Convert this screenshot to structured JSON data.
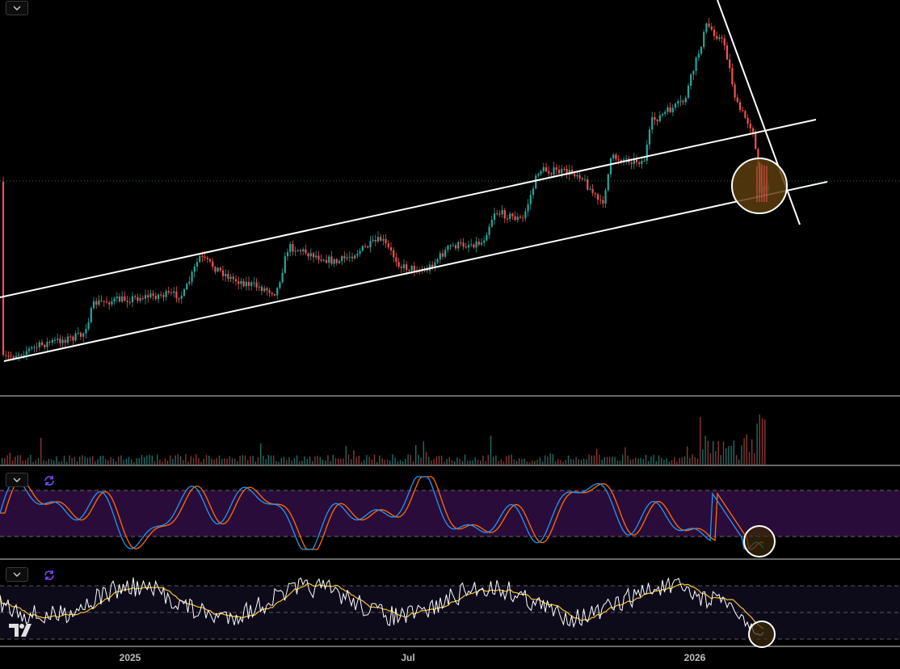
{
  "app": {
    "logo_name": "tradingview-logo-icon"
  },
  "time_axis": {
    "labels": [
      {
        "text": "2025",
        "name": "time-axis-label-2025"
      },
      {
        "text": "Jul",
        "name": "time-axis-label-jul"
      },
      {
        "text": "2026",
        "name": "time-axis-label-2026"
      }
    ]
  },
  "panes": {
    "price": {
      "name": "price-pane",
      "collapse_icon": "chevron-down-icon"
    },
    "volume": {
      "name": "volume-pane"
    },
    "stoch_rsi": {
      "name": "stochastic-rsi-pane",
      "collapse_icon": "chevron-down-icon",
      "refresh_icon": "refresh-icon"
    },
    "rsi": {
      "name": "rsi-pane",
      "collapse_icon": "chevron-down-icon",
      "refresh_icon": "refresh-icon"
    }
  },
  "colors": {
    "background": "#000000",
    "up_candle": "#26a69a",
    "down_candle": "#ef5350",
    "channel_lines": "#ffffff",
    "highlight_circle_fill": "#5a3d0e",
    "stoch_band": "#2a0c3a",
    "rsi_band": "#0d0a1a",
    "stoch_k": "#2196f3",
    "stoch_d": "#ff6d00",
    "rsi_line": "#ffffff",
    "rsi_ma": "#f4c430",
    "divider": "#d0d0d0"
  }
}
